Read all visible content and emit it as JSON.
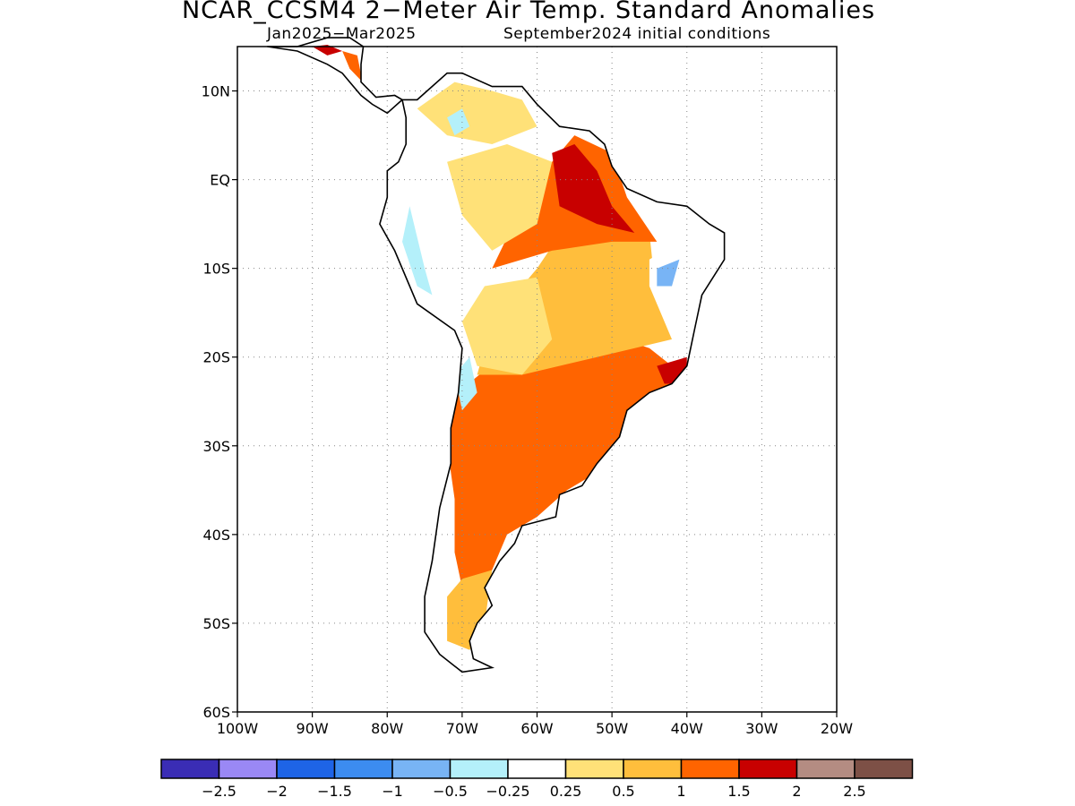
{
  "title": "NCAR_CCSM4 2−Meter Air Temp. Standard Anomalies",
  "subtitle_period": "Jan2025−Mar2025",
  "subtitle_init": "September2024 initial conditions",
  "map": {
    "region": "South America",
    "lon_range": [
      -100,
      -20
    ],
    "lat_range": [
      -60,
      15
    ],
    "grid": "dotted",
    "lat_ticks": [
      {
        "value": 10,
        "label": "10N"
      },
      {
        "value": 0,
        "label": "EQ"
      },
      {
        "value": -10,
        "label": "10S"
      },
      {
        "value": -20,
        "label": "20S"
      },
      {
        "value": -30,
        "label": "30S"
      },
      {
        "value": -40,
        "label": "40S"
      },
      {
        "value": -50,
        "label": "50S"
      },
      {
        "value": -60,
        "label": "60S"
      }
    ],
    "lon_ticks": [
      {
        "value": -100,
        "label": "100W"
      },
      {
        "value": -90,
        "label": "90W"
      },
      {
        "value": -80,
        "label": "80W"
      },
      {
        "value": -70,
        "label": "70W"
      },
      {
        "value": -60,
        "label": "60W"
      },
      {
        "value": -50,
        "label": "50W"
      },
      {
        "value": -40,
        "label": "40W"
      },
      {
        "value": -30,
        "label": "30W"
      },
      {
        "value": -20,
        "label": "20W"
      }
    ]
  },
  "colorbar": {
    "colors": [
      "#3a2db5",
      "#9a88f5",
      "#1e64e6",
      "#3c8cf0",
      "#78b4f5",
      "#b4f0fa",
      "#ffffff",
      "#ffe178",
      "#ffbe3c",
      "#ff6400",
      "#c80000",
      "#b48c82",
      "#7d5046"
    ],
    "labels": [
      "−2.5",
      "−2",
      "−1.5",
      "−1",
      "−0.5",
      "−0.25",
      "0.25",
      "0.5",
      "1",
      "1.5",
      "2",
      "2.5"
    ]
  }
}
